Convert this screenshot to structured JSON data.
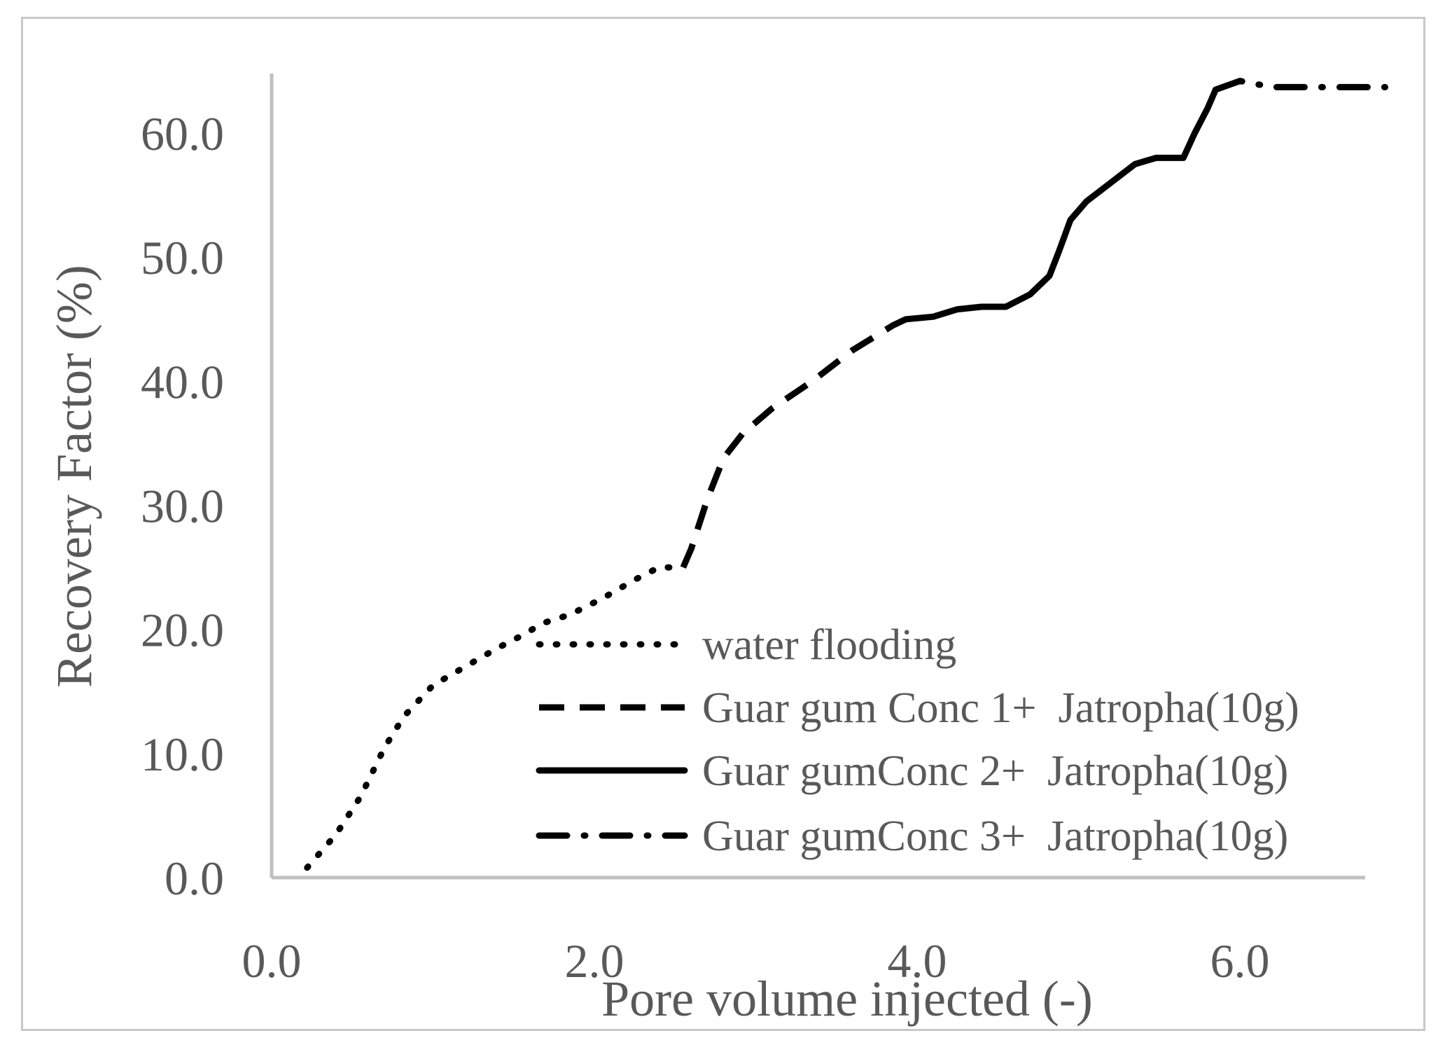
{
  "chart_data": {
    "type": "line",
    "title": "",
    "xlabel": "Pore volume injected (-)",
    "ylabel": "Recovery Factor (%)",
    "xlim": [
      0,
      7.0
    ],
    "ylim": [
      0,
      64
    ],
    "x_ticks": [
      "0.0",
      "2.0",
      "4.0",
      "6.0"
    ],
    "x_tick_values": [
      0,
      2,
      4,
      6
    ],
    "y_ticks": [
      "0.0",
      "10.0",
      "20.0",
      "30.0",
      "40.0",
      "50.0",
      "60.0"
    ],
    "y_tick_values": [
      0,
      10,
      20,
      30,
      40,
      50,
      60
    ],
    "legend_position": "bottom-right",
    "series": [
      {
        "name": "water flooding",
        "style": "dotted",
        "x": [
          0.22,
          0.4,
          0.55,
          0.7,
          0.82,
          1.0,
          1.2,
          1.4,
          1.55,
          1.68,
          1.85,
          2.05,
          2.25,
          2.4,
          2.55
        ],
        "y": [
          0.8,
          3.5,
          6.5,
          10.5,
          13.0,
          15.5,
          17.0,
          18.5,
          19.5,
          20.5,
          21.2,
          22.5,
          24.0,
          25.0,
          25.0
        ]
      },
      {
        "name": "Guar gum Conc 1+  Jatropha(10g)",
        "style": "dashed",
        "x": [
          2.55,
          2.6,
          2.7,
          2.8,
          2.92,
          3.1,
          3.35,
          3.6,
          3.85,
          3.93
        ],
        "y": [
          25.0,
          26.5,
          30.5,
          33.8,
          35.8,
          37.8,
          40.0,
          42.5,
          44.5,
          45.0
        ]
      },
      {
        "name": "Guar gumConc 2+  Jatropha(10g)",
        "style": "solid",
        "x": [
          3.93,
          4.1,
          4.25,
          4.4,
          4.55,
          4.7,
          4.82,
          4.88,
          4.95,
          5.05,
          5.2,
          5.35,
          5.48,
          5.6,
          5.65,
          5.72,
          5.8,
          5.85
        ],
        "y": [
          45.0,
          45.2,
          45.8,
          46.0,
          46.0,
          47.0,
          48.5,
          50.5,
          53.0,
          54.5,
          56.0,
          57.5,
          58.0,
          58.0,
          58.0,
          60.0,
          62.0,
          63.5
        ]
      },
      {
        "name": "Guar gumConc 3+  Jatropha(10g)",
        "style": "dash-dot",
        "x": [
          5.85,
          6.0,
          6.2,
          6.5,
          6.8,
          6.9
        ],
        "y": [
          63.5,
          64.2,
          63.7,
          63.7,
          63.7,
          63.7
        ]
      }
    ]
  }
}
